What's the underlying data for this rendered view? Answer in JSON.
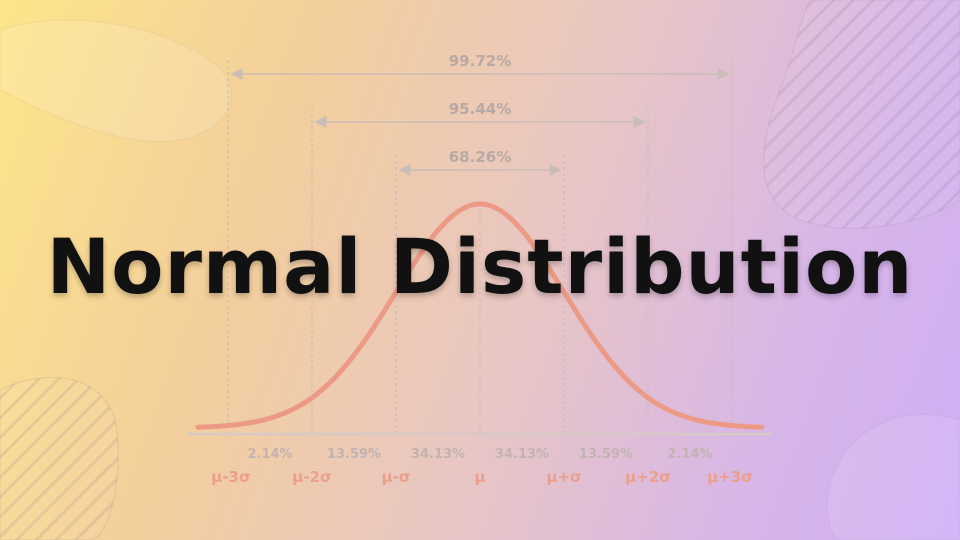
{
  "title": "Normal Distribution",
  "ranges": [
    {
      "label": "99.72%",
      "from_sigma": -3,
      "to_sigma": 3
    },
    {
      "label": "95.44%",
      "from_sigma": -2,
      "to_sigma": 2
    },
    {
      "label": "68.26%",
      "from_sigma": -1,
      "to_sigma": 1
    }
  ],
  "bottom_percentages": [
    "2.14%",
    "13.59%",
    "34.13%",
    "34.13%",
    "13.59%",
    "2.14%"
  ],
  "sigma_labels": [
    "μ-3σ",
    "μ-2σ",
    "μ-σ",
    "μ",
    "μ+σ",
    "μ+2σ",
    "μ+3σ"
  ],
  "colors": {
    "curve": "#ec9a86",
    "guides": "#c9bdb8",
    "sigma_labels": "#eaa08c",
    "title": "#111111"
  }
}
